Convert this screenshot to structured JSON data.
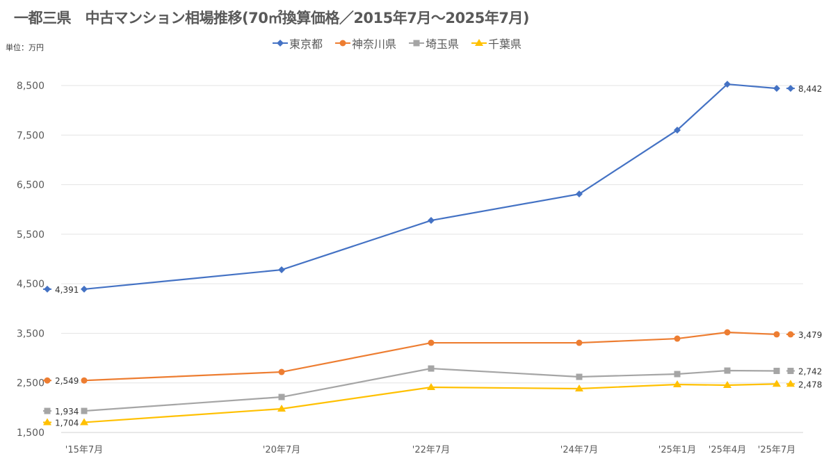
{
  "chart_data": {
    "type": "line",
    "title": "一都三県　中古マンション相場推移(70㎡換算価格／2015年7月～2025年7月)",
    "unit_label": "単位：万円",
    "categories": [
      "'15年7月",
      "'20年7月",
      "'22年7月",
      "'24年7月",
      "'25年1月",
      "'25年4月",
      "'25年7月"
    ],
    "ylim": [
      1500,
      8500
    ],
    "yticks": [
      1500,
      2500,
      3500,
      4500,
      5500,
      6500,
      7500,
      8500
    ],
    "ytick_labels": [
      "1,500",
      "2,500",
      "3,500",
      "4,500",
      "5,500",
      "6,500",
      "7,500",
      "8,500"
    ],
    "grid": true,
    "legend_position": "top",
    "series": [
      {
        "name": "東京都",
        "color": "#4472c4",
        "marker": "diamond",
        "values": [
          4391,
          4782,
          5778,
          6311,
          7601,
          8527,
          8442
        ],
        "start_label": "4,391",
        "end_label": "8,442"
      },
      {
        "name": "神奈川県",
        "color": "#ed7d31",
        "marker": "circle",
        "values": [
          2549,
          2720,
          3309,
          3309,
          3393,
          3520,
          3479
        ],
        "start_label": "2,549",
        "end_label": "3,479"
      },
      {
        "name": "埼玉県",
        "color": "#a5a5a5",
        "marker": "square",
        "values": [
          1934,
          2215,
          2790,
          2622,
          2678,
          2748,
          2742
        ],
        "start_label": "1,934",
        "end_label": "2,742"
      },
      {
        "name": "千葉県",
        "color": "#ffc000",
        "marker": "triangle",
        "values": [
          1704,
          1977,
          2412,
          2384,
          2468,
          2454,
          2478
        ],
        "start_label": "1,704",
        "end_label": "2,478"
      }
    ]
  }
}
